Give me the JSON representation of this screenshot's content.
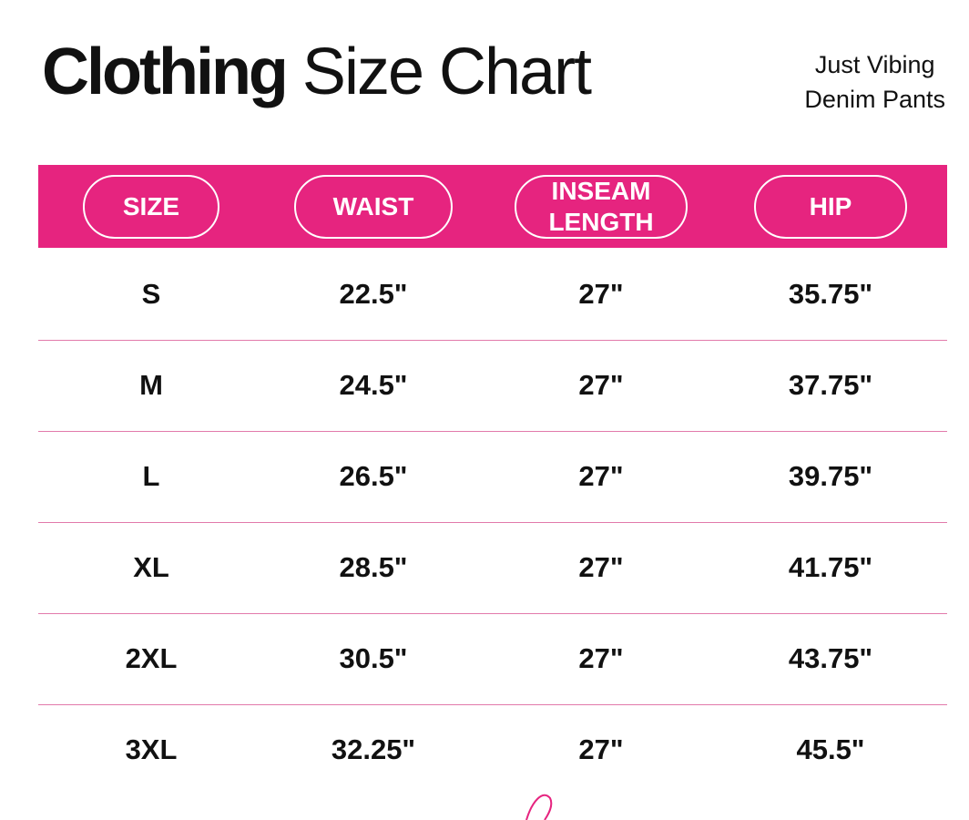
{
  "header": {
    "title_bold": "Clothing",
    "title_regular": "Size Chart",
    "subtitle": [
      "Just Vibing",
      "Denim Pants"
    ]
  },
  "table": {
    "columns": [
      "SIZE",
      "WAIST",
      "INSEAM LENGTH",
      "HIP"
    ],
    "rows": [
      [
        "S",
        "22.5\"",
        "27\"",
        "35.75\""
      ],
      [
        "M",
        "24.5\"",
        "27\"",
        "37.75\""
      ],
      [
        "L",
        "26.5\"",
        "27\"",
        "39.75\""
      ],
      [
        "XL",
        "28.5\"",
        "27\"",
        "41.75\""
      ],
      [
        "2XL",
        "30.5\"",
        "27\"",
        "43.75\""
      ],
      [
        "3XL",
        "32.25\"",
        "27\"",
        "45.5\""
      ]
    ]
  }
}
